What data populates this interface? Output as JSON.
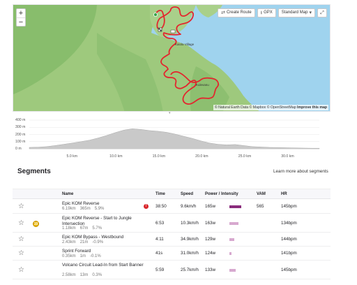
{
  "map": {
    "zoom_in": "+",
    "zoom_out": "−",
    "create_route": "Create Route",
    "gpx": "GPX",
    "map_style": "Standard Map",
    "expand": "⤢",
    "place_1": "Kaiola Village",
    "place_2": "Kulevanu",
    "attribution_prefix": "© Natural Earth Data © Mapbox © OpenStreetMap",
    "attribution_link": "Improve this map",
    "collapse": "▾"
  },
  "chart_data": {
    "type": "area",
    "title": "",
    "xlabel": "",
    "ylabel": "",
    "y_tick_labels": [
      "400 m",
      "300 m",
      "200 m",
      "100 m",
      "0 m"
    ],
    "x_tick_labels": [
      "5.0 km",
      "10.0 km",
      "15.0 km",
      "20.0 km",
      "25.0 km",
      "30.0 km"
    ],
    "xlim": [
      0,
      33.8
    ],
    "ylim": [
      0,
      400
    ],
    "x": [
      0,
      1,
      2,
      3,
      4,
      5,
      6,
      7,
      8,
      9,
      10,
      11,
      12,
      13,
      14,
      15,
      16,
      17,
      18,
      19,
      20,
      21,
      22,
      23,
      24,
      25,
      26,
      27,
      28,
      29,
      30,
      31,
      32,
      33,
      33.8
    ],
    "y": [
      20,
      22,
      30,
      45,
      62,
      80,
      100,
      120,
      150,
      185,
      225,
      260,
      280,
      270,
      255,
      245,
      230,
      205,
      175,
      145,
      110,
      80,
      62,
      55,
      60,
      45,
      30,
      25,
      20,
      18,
      15,
      12,
      10,
      8,
      8
    ],
    "grid": true
  },
  "segments": {
    "title": "Segments",
    "learn_more": "Learn more about segments",
    "headers": {
      "name": "Name",
      "time": "Time",
      "speed": "Speed",
      "power": "Power / Intensity",
      "vam": "VAM",
      "hr": "HR"
    },
    "rows": [
      {
        "name": "Epic KOM Reverse",
        "dist": "6.19km",
        "elev": "365m",
        "grade": "5.9%",
        "time": "38:50",
        "speed": "9.6km/h",
        "power": "165w",
        "intensity": 1.0,
        "vam": "565",
        "hr": "145bpm",
        "alert": "!",
        "medal": ""
      },
      {
        "name": "Epic KOM Reverse - Start to Jungle Intersection",
        "dist": "1.18km",
        "elev": "67m",
        "grade": "5.7%",
        "time": "6:53",
        "speed": "10.3km/h",
        "power": "163w",
        "intensity": 0.78,
        "vam": "",
        "hr": "134bpm",
        "alert": "",
        "medal": "10"
      },
      {
        "name": "Epic KOM Bypass - Westbound",
        "dist": "2.43km",
        "elev": "21m",
        "grade": "-0.9%",
        "time": "4:11",
        "speed": "34.9km/h",
        "power": "129w",
        "intensity": 0.42,
        "vam": "",
        "hr": "144bpm",
        "alert": "",
        "medal": ""
      },
      {
        "name": "Sprint Forward",
        "dist": "0.35km",
        "elev": "1m",
        "grade": "-0.1%",
        "time": "41s",
        "speed": "31.0km/h",
        "power": "124w",
        "intensity": 0.12,
        "vam": "",
        "hr": "141bpm",
        "alert": "",
        "medal": ""
      },
      {
        "name": "Volcano Circuit Lead-In from Start Banner",
        "dist": "2.58km",
        "elev": "13m",
        "grade": "0.3%",
        "time": "5:59",
        "speed": "25.7km/h",
        "power": "133w",
        "intensity": 0.5,
        "vam": "",
        "hr": "145bpm",
        "alert": "",
        "medal": ""
      }
    ]
  },
  "colors": {
    "route": "#e3262e",
    "water": "#9fd3ee",
    "land": "#9ec97d",
    "forest": "#7fb865",
    "intensity_strong": "#8a2c7c",
    "intensity_light": "#d7a9cf",
    "elevation_fill": "#c9c9c9"
  }
}
